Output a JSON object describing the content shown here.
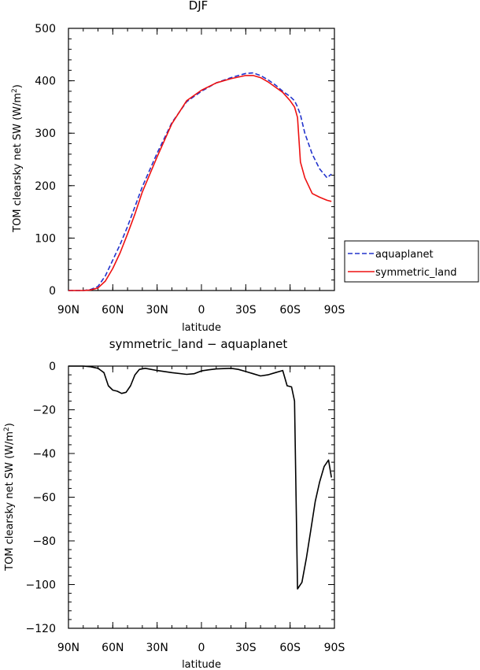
{
  "colors": {
    "aquaplanet": "#2233cc",
    "symmetric_land": "#ee1111",
    "diff": "#000000"
  },
  "chart_data": [
    {
      "type": "line",
      "title": "DJF",
      "xlabel": "latitude",
      "ylabel": "TOM clearsky net SW (W/m",
      "ylabel_sup": "2",
      "ylabel_close": ")",
      "xlim": [
        90,
        -90
      ],
      "ylim": [
        0,
        500
      ],
      "x_ticks": [
        90,
        60,
        30,
        0,
        -30,
        -60,
        -90
      ],
      "x_tick_labels": [
        "90N",
        "60N",
        "30N",
        "0",
        "30S",
        "60S",
        "90S"
      ],
      "y_ticks": [
        0,
        100,
        200,
        300,
        400,
        500
      ],
      "y_tick_labels": [
        "0",
        "100",
        "200",
        "300",
        "400",
        "500"
      ],
      "legend": {
        "placement": "right",
        "entries": [
          "aquaplanet",
          "symmetric_land"
        ]
      },
      "series": [
        {
          "name": "aquaplanet",
          "style": "dashed",
          "x": [
            90,
            80,
            75,
            70,
            65,
            60,
            55,
            50,
            45,
            40,
            30,
            20,
            10,
            0,
            -10,
            -20,
            -30,
            -35,
            -40,
            -45,
            -50,
            -55,
            -60,
            -63,
            -65,
            -67,
            -70,
            -75,
            -80,
            -85,
            -88
          ],
          "y": [
            0,
            0,
            2,
            8,
            28,
            58,
            88,
            122,
            160,
            198,
            262,
            320,
            360,
            380,
            396,
            406,
            414,
            415,
            410,
            402,
            392,
            380,
            370,
            362,
            350,
            335,
            300,
            260,
            232,
            215,
            222
          ]
        },
        {
          "name": "symmetric_land",
          "style": "solid",
          "x": [
            90,
            80,
            75,
            70,
            65,
            60,
            55,
            50,
            45,
            40,
            30,
            20,
            10,
            0,
            -10,
            -20,
            -30,
            -35,
            -40,
            -45,
            -50,
            -55,
            -60,
            -63,
            -65,
            -67,
            -70,
            -75,
            -80,
            -85,
            -88
          ],
          "y": [
            0,
            0,
            1,
            5,
            18,
            42,
            72,
            108,
            146,
            188,
            255,
            318,
            362,
            382,
            396,
            404,
            410,
            410,
            406,
            398,
            388,
            378,
            362,
            350,
            330,
            245,
            215,
            185,
            178,
            172,
            170
          ]
        }
      ]
    },
    {
      "type": "line",
      "title": "symmetric_land − aquaplanet",
      "xlabel": "latitude",
      "ylabel": "TOM clearsky net SW (W/m",
      "ylabel_sup": "2",
      "ylabel_close": ")",
      "xlim": [
        90,
        -90
      ],
      "ylim": [
        -120,
        0
      ],
      "x_ticks": [
        90,
        60,
        30,
        0,
        -30,
        -60,
        -90
      ],
      "x_tick_labels": [
        "90N",
        "60N",
        "30N",
        "0",
        "30S",
        "60S",
        "90S"
      ],
      "y_ticks": [
        0,
        -20,
        -40,
        -60,
        -80,
        -100,
        -120
      ],
      "y_tick_labels": [
        "0",
        "−20",
        "−40",
        "−60",
        "−80",
        "−100",
        "−120"
      ],
      "series": [
        {
          "name": "symmetric_land − aquaplanet",
          "style": "solid",
          "x": [
            90,
            80,
            75,
            70,
            66,
            63,
            60,
            57,
            54,
            51,
            48,
            45,
            42,
            38,
            30,
            20,
            10,
            5,
            0,
            -5,
            -10,
            -20,
            -25,
            -30,
            -35,
            -40,
            -45,
            -50,
            -55,
            -58,
            -61,
            -63,
            -65,
            -68,
            -71,
            -74,
            -77,
            -80,
            -83,
            -86,
            -88
          ],
          "y": [
            0,
            0,
            -0.3,
            -1,
            -3,
            -9,
            -11,
            -11.5,
            -12.5,
            -12,
            -9,
            -4,
            -1.5,
            -1,
            -2,
            -3,
            -3.8,
            -3.5,
            -2.2,
            -1.7,
            -1.3,
            -1,
            -1.5,
            -2.5,
            -3.5,
            -4.5,
            -4,
            -3,
            -2,
            -9,
            -9.5,
            -16,
            -102,
            -99,
            -88,
            -75,
            -62,
            -53,
            -46,
            -43,
            -51
          ]
        }
      ]
    }
  ]
}
